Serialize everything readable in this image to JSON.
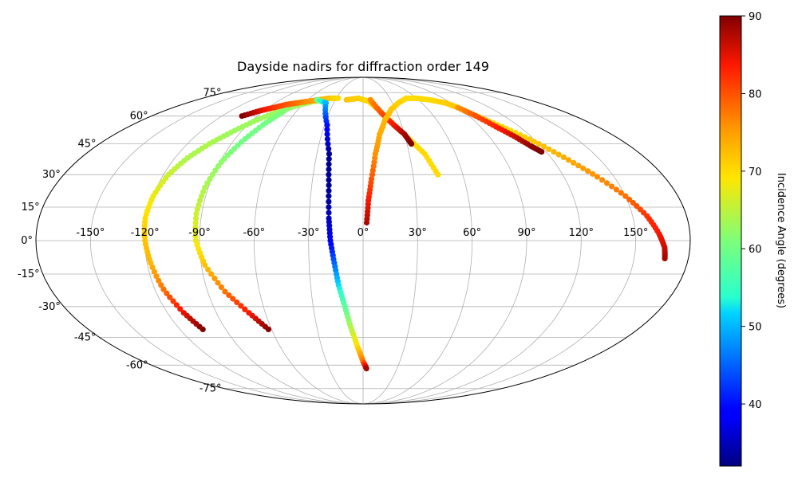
{
  "chart_data": {
    "type": "scatter",
    "projection": "mollweide",
    "title": "Dayside nadirs for diffraction order 149",
    "grid": true,
    "lon_ticks": [
      -150,
      -120,
      -90,
      -60,
      -30,
      0,
      30,
      60,
      90,
      120,
      150
    ],
    "lon_tick_labels": [
      "-150°",
      "-120°",
      "-90°",
      "-60°",
      "-30°",
      "0°",
      "30°",
      "60°",
      "90°",
      "120°",
      "150°"
    ],
    "lat_ticks": [
      -75,
      -60,
      -45,
      -30,
      -15,
      0,
      15,
      30,
      45,
      60,
      75
    ],
    "lat_tick_labels": [
      "-75°",
      "-60°",
      "-45°",
      "-30°",
      "-15°",
      "0°",
      "15°",
      "30°",
      "45°",
      "60°",
      "75°"
    ],
    "colormap": "jet",
    "colorbar": {
      "label": "Incidence Angle (degrees)",
      "range": [
        32,
        90
      ],
      "ticks": [
        40,
        50,
        60,
        70,
        80,
        90
      ],
      "tick_labels": [
        "40",
        "50",
        "60",
        "70",
        "80",
        "90"
      ]
    },
    "series": [
      {
        "lon": [
          -105,
          -110,
          -115,
          -118,
          -120,
          -121,
          -120,
          -117,
          -112,
          -105,
          -97,
          -88,
          -78,
          -66,
          -52,
          -40
        ],
        "lat": [
          -41,
          -33,
          -22,
          -10,
          0,
          10,
          20,
          30,
          38,
          45,
          51,
          57,
          62,
          66,
          69,
          70
        ],
        "incidence": [
          90,
          85,
          78,
          73,
          72,
          70,
          68,
          66,
          64,
          64,
          63,
          63,
          63,
          63,
          64,
          66
        ]
      },
      {
        "lon": [
          -62,
          -70,
          -80,
          -88,
          -92,
          -93,
          -92,
          -89,
          -84,
          -78,
          -72,
          -68
        ],
        "lat": [
          -41,
          -33,
          -23,
          -11,
          0,
          12,
          24,
          36,
          46,
          55,
          62,
          68
        ],
        "incidence": [
          90,
          84,
          78,
          72,
          68,
          66,
          64,
          62,
          60,
          60,
          61,
          63
        ]
      },
      {
        "lon": [
          -103,
          -94,
          -85,
          -76,
          -67,
          -58,
          -48,
          -38,
          -28
        ],
        "lat": [
          60,
          63,
          65,
          67,
          68,
          69,
          70,
          71,
          71
        ],
        "incidence": [
          90,
          86,
          82,
          80,
          78,
          76,
          74,
          72,
          70
        ]
      },
      {
        "lon": [
          -50,
          -38,
          -28,
          -22,
          -20,
          -19,
          -18,
          -16,
          -14,
          -11,
          -8,
          -4,
          0,
          3
        ],
        "lat": [
          70,
          68,
          55,
          40,
          25,
          10,
          0,
          -10,
          -20,
          -30,
          -40,
          -50,
          -58,
          -62
        ],
        "incidence": [
          60,
          50,
          40,
          33,
          33,
          35,
          38,
          45,
          52,
          58,
          64,
          70,
          78,
          88
        ]
      },
      {
        "lon": [
          -18,
          -5,
          6,
          14,
          22,
          32,
          40,
          45
        ],
        "lat": [
          70,
          71,
          69,
          64,
          57,
          48,
          40,
          30
        ],
        "incidence": [
          72,
          71,
          70,
          70,
          70,
          70,
          70,
          70
        ]
      },
      {
        "lon": [
          8,
          16,
          24,
          30,
          33
        ],
        "lat": [
          70,
          62,
          55,
          50,
          45
        ],
        "incidence": [
          76,
          80,
          84,
          88,
          90
        ]
      },
      {
        "lon": [
          2,
          3,
          5,
          8,
          12,
          18,
          26,
          36,
          48,
          60,
          72,
          84,
          90
        ],
        "lat": [
          8,
          18,
          28,
          40,
          50,
          58,
          64,
          68,
          71,
          71,
          70,
          68,
          65
        ],
        "incidence": [
          88,
          84,
          80,
          76,
          74,
          73,
          72,
          71,
          70,
          70,
          70,
          71,
          72
        ]
      },
      {
        "lon": [
          92,
          100,
          110,
          120,
          130,
          140,
          150,
          158,
          163,
          166,
          167
        ],
        "lat": [
          63,
          58,
          52,
          45,
          37,
          29,
          20,
          11,
          3,
          -3,
          -8
        ],
        "incidence": [
          72,
          71,
          70,
          72,
          74,
          76,
          78,
          82,
          84,
          86,
          88
        ]
      },
      {
        "lon": [
          90,
          96,
          102,
          108,
          113,
          117
        ],
        "lat": [
          65,
          60,
          54,
          49,
          44,
          41
        ],
        "incidence": [
          76,
          80,
          83,
          86,
          89,
          90
        ]
      }
    ]
  }
}
